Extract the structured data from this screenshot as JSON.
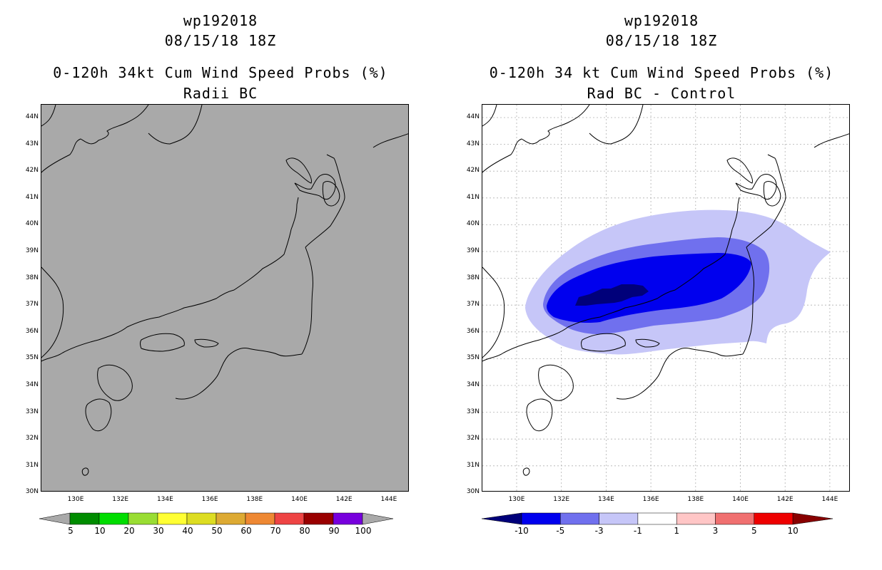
{
  "colors": {
    "land_gray": "#a9a9a9",
    "coast": "#000000",
    "grid": "#b0b0b0",
    "prob_scale": [
      "#008c00",
      "#00dd00",
      "#99dd33",
      "#ffff33",
      "#dddd22",
      "#ddaa33",
      "#ee8833",
      "#ee4444",
      "#990000",
      "#7700dd"
    ],
    "diff_scale": [
      "#00007a",
      "#0000ee",
      "#7070ee",
      "#c6c6f8",
      "#ffffff",
      "#ffc6c6",
      "#f07070",
      "#ee0000",
      "#880000"
    ]
  },
  "left": {
    "title_line1": "wp192018",
    "title_line2": "08/15/18 18Z",
    "title_line3": "0-120h 34kt Cum Wind Speed Probs (%)",
    "title_line4": "Radii BC",
    "colorbar_labels": [
      "5",
      "10",
      "20",
      "30",
      "40",
      "50",
      "60",
      "70",
      "80",
      "90",
      "100"
    ]
  },
  "right": {
    "title_line1": "wp192018",
    "title_line2": "08/15/18 18Z",
    "title_line3": "0-120h 34 kt Cum Wind Speed Probs (%)",
    "title_line4": "Rad BC - Control",
    "colorbar_labels": [
      "-10",
      "-5",
      "-3",
      "-1",
      "1",
      "3",
      "5",
      "10"
    ]
  },
  "lat_labels": [
    "44N",
    "43N",
    "42N",
    "41N",
    "40N",
    "39N",
    "38N",
    "37N",
    "36N",
    "35N",
    "34N",
    "33N",
    "32N",
    "31N",
    "30N"
  ],
  "lon_labels": [
    "130E",
    "132E",
    "134E",
    "136E",
    "138E",
    "140E",
    "142E",
    "144E"
  ]
}
